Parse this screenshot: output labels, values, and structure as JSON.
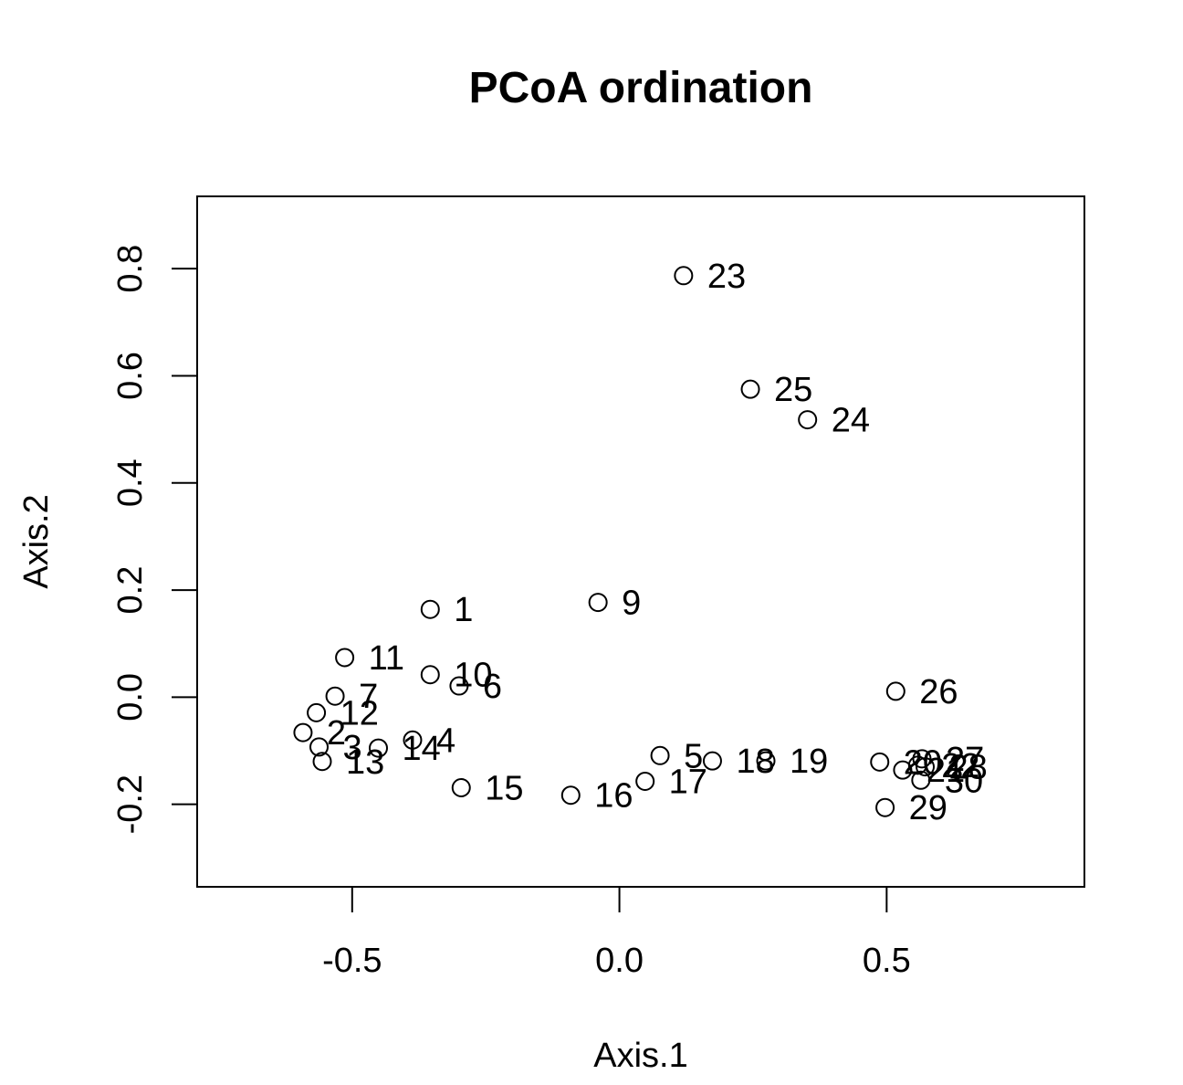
{
  "chart_data": {
    "type": "scatter",
    "title": "PCoA ordination",
    "xlabel": "Axis.1",
    "ylabel": "Axis.2",
    "xlim": [
      -0.79,
      0.87
    ],
    "ylim": [
      -0.354,
      0.935
    ],
    "xticks": [
      -0.5,
      0.0,
      0.5
    ],
    "xtick_labels": [
      "-0.5",
      "0.0",
      "0.5"
    ],
    "yticks": [
      -0.2,
      0.0,
      0.2,
      0.4,
      0.6,
      0.8
    ],
    "ytick_labels": [
      "-0.2",
      "0.0",
      "0.2",
      "0.4",
      "0.6",
      "0.8"
    ],
    "grid": false,
    "legend": "none",
    "marker": "open-circle",
    "points": [
      {
        "label": "1",
        "x": -0.354,
        "y": 0.164
      },
      {
        "label": "2",
        "x": -0.592,
        "y": -0.066
      },
      {
        "label": "3",
        "x": -0.562,
        "y": -0.093
      },
      {
        "label": "4",
        "x": -0.387,
        "y": -0.08
      },
      {
        "label": "5",
        "x": 0.076,
        "y": -0.109
      },
      {
        "label": "6",
        "x": -0.3,
        "y": 0.021
      },
      {
        "label": "7",
        "x": -0.532,
        "y": 0.002
      },
      {
        "label": "9",
        "x": -0.04,
        "y": 0.177
      },
      {
        "label": "10",
        "x": -0.354,
        "y": 0.042
      },
      {
        "label": "11",
        "x": -0.514,
        "y": 0.074
      },
      {
        "label": "12",
        "x": -0.567,
        "y": -0.029
      },
      {
        "label": "13",
        "x": -0.556,
        "y": -0.12
      },
      {
        "label": "14",
        "x": -0.451,
        "y": -0.095
      },
      {
        "label": "15",
        "x": -0.296,
        "y": -0.169
      },
      {
        "label": "16",
        "x": -0.091,
        "y": -0.183
      },
      {
        "label": "17",
        "x": 0.048,
        "y": -0.157
      },
      {
        "label": "18",
        "x": 0.174,
        "y": -0.119
      },
      {
        "label": "19",
        "x": 0.274,
        "y": -0.119
      },
      {
        "label": "20",
        "x": 0.487,
        "y": -0.121
      },
      {
        "label": "21",
        "x": 0.53,
        "y": -0.136
      },
      {
        "label": "22",
        "x": 0.558,
        "y": -0.127
      },
      {
        "label": "23",
        "x": 0.12,
        "y": 0.787
      },
      {
        "label": "24",
        "x": 0.352,
        "y": 0.518
      },
      {
        "label": "25",
        "x": 0.245,
        "y": 0.575
      },
      {
        "label": "26",
        "x": 0.517,
        "y": 0.011
      },
      {
        "label": "27",
        "x": 0.566,
        "y": -0.115
      },
      {
        "label": "28",
        "x": 0.572,
        "y": -0.13
      },
      {
        "label": "29",
        "x": 0.497,
        "y": -0.206
      },
      {
        "label": "30",
        "x": 0.564,
        "y": -0.155
      }
    ]
  }
}
